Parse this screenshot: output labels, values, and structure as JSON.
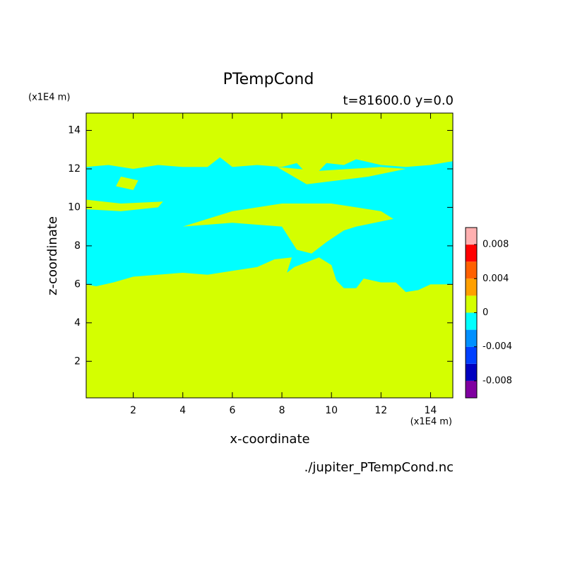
{
  "chart_data": {
    "type": "contour",
    "title": "PTempCond",
    "subtitle": "t=81600.0 y=0.0",
    "xlabel": "x-coordinate",
    "ylabel": "z-coordinate",
    "x_unit": "(x1E4 m)",
    "y_unit": "(x1E4 m)",
    "source": "./jupiter_PTempCond.nc",
    "xlim": [
      0.1,
      14.9
    ],
    "ylim": [
      0.1,
      14.9
    ],
    "xticks": [
      2,
      4,
      6,
      8,
      10,
      12,
      14
    ],
    "yticks": [
      2,
      4,
      6,
      8,
      10,
      12,
      14
    ],
    "background": "#d4ff00",
    "regions": [
      {
        "color": "#00ffff",
        "x": [
          0.1,
          1,
          2,
          3,
          4,
          5,
          5.5,
          6,
          7,
          8,
          8.6,
          9.2,
          9.8,
          10.5,
          11,
          12,
          13,
          14,
          14.9,
          14.9,
          14,
          13.5,
          13,
          12.6,
          12,
          11.3,
          11,
          10.5,
          10.2,
          10,
          9.5,
          8.5,
          8.2,
          8.4,
          7.7,
          7,
          6,
          5,
          4,
          3,
          2,
          1.2,
          0.5,
          0.1
        ],
        "y": [
          12.1,
          12.2,
          12.0,
          12.2,
          12.1,
          12.1,
          12.6,
          12.1,
          12.2,
          12.1,
          12.3,
          11.5,
          12.3,
          12.2,
          12.5,
          12.2,
          12.1,
          12.2,
          12.4,
          6.0,
          6.0,
          5.7,
          5.6,
          6.1,
          6.1,
          6.3,
          5.8,
          5.8,
          6.2,
          7.0,
          7.4,
          6.9,
          6.6,
          7.4,
          7.3,
          6.9,
          6.7,
          6.5,
          6.6,
          6.5,
          6.4,
          6.1,
          5.9,
          6.0
        ]
      },
      {
        "color": "#d4ff00",
        "x": [
          4,
          6,
          8,
          8.6,
          9.2,
          9.8,
          10.5,
          11,
          12.5,
          12,
          10,
          8,
          6,
          5
        ],
        "y": [
          9.0,
          9.2,
          9.0,
          7.8,
          7.6,
          8.2,
          8.8,
          9.0,
          9.4,
          9.8,
          10.2,
          10.2,
          9.8,
          9.4
        ]
      },
      {
        "color": "#d4ff00",
        "x": [
          0.1,
          1.5,
          3,
          3.2,
          1.5,
          0.1
        ],
        "y": [
          9.9,
          9.8,
          10.0,
          10.3,
          10.2,
          10.4
        ]
      },
      {
        "color": "#d4ff00",
        "x": [
          1.3,
          2.0,
          2.2,
          1.5
        ],
        "y": [
          11.1,
          10.9,
          11.4,
          11.6
        ]
      },
      {
        "color": "#d4ff00",
        "x": [
          7.8,
          9.0,
          11.5,
          13.0,
          12.0,
          9.5
        ],
        "y": [
          12.1,
          11.2,
          11.6,
          12.0,
          12.1,
          11.9
        ]
      }
    ],
    "colorbar": {
      "levels": [
        -0.01,
        -0.008,
        -0.006,
        -0.004,
        -0.002,
        0,
        0.002,
        0.004,
        0.006,
        0.008,
        0.01
      ],
      "colors": [
        "#8000a0",
        "#0000c0",
        "#0040ff",
        "#0090ff",
        "#00ffff",
        "#d4ff00",
        "#ffa000",
        "#ff6000",
        "#ff0000",
        "#ffb0b0"
      ],
      "ticks": [
        0.008,
        0.004,
        0,
        -0.004,
        -0.008
      ]
    }
  }
}
